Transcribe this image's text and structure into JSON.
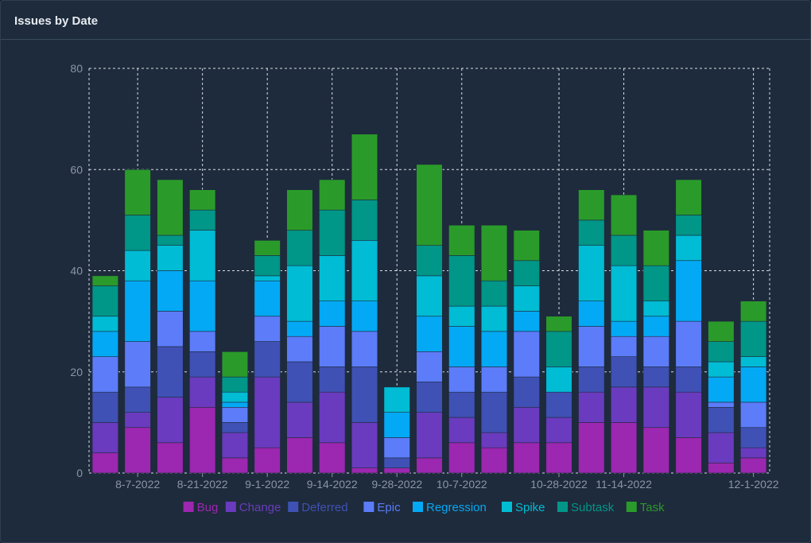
{
  "panel": {
    "title": "Issues by Date"
  },
  "chart_data": {
    "type": "bar",
    "stacked": true,
    "title": "Issues by Date",
    "xlabel": "",
    "ylabel": "",
    "ylim": [
      0,
      80
    ],
    "yticks": [
      0,
      20,
      40,
      60,
      80
    ],
    "grid": true,
    "legend_position": "bottom",
    "x_tick_labels": [
      {
        "index": 1,
        "label": "8-7-2022"
      },
      {
        "index": 3,
        "label": "8-21-2022"
      },
      {
        "index": 5,
        "label": "9-1-2022"
      },
      {
        "index": 7,
        "label": "9-14-2022"
      },
      {
        "index": 9,
        "label": "9-28-2022"
      },
      {
        "index": 11,
        "label": "10-7-2022"
      },
      {
        "index": 14,
        "label": "10-28-2022"
      },
      {
        "index": 16,
        "label": "11-14-2022"
      },
      {
        "index": 20,
        "label": "12-1-2022"
      }
    ],
    "n_bars": 21,
    "series": [
      {
        "name": "Bug",
        "color": "#9c27b0",
        "values": [
          4,
          9,
          6,
          13,
          3,
          5,
          7,
          6,
          1,
          1,
          3,
          6,
          5,
          6,
          6,
          10,
          10,
          9,
          7,
          2,
          3
        ]
      },
      {
        "name": "Change",
        "color": "#6a3bbf",
        "values": [
          6,
          3,
          9,
          6,
          5,
          14,
          7,
          10,
          9,
          0,
          9,
          5,
          3,
          7,
          5,
          6,
          7,
          8,
          9,
          6,
          2
        ]
      },
      {
        "name": "Deferred",
        "color": "#3f51b5",
        "values": [
          6,
          5,
          10,
          5,
          2,
          7,
          8,
          5,
          11,
          2,
          6,
          5,
          8,
          6,
          5,
          5,
          6,
          4,
          5,
          5,
          4
        ]
      },
      {
        "name": "Epic",
        "color": "#5c7cfa",
        "values": [
          7,
          9,
          7,
          4,
          3,
          5,
          5,
          8,
          7,
          4,
          6,
          5,
          5,
          9,
          0,
          8,
          4,
          6,
          9,
          1,
          5
        ]
      },
      {
        "name": "Regression",
        "color": "#03a9f4",
        "values": [
          5,
          12,
          8,
          10,
          1,
          7,
          3,
          5,
          6,
          5,
          7,
          8,
          7,
          4,
          0,
          5,
          3,
          4,
          12,
          5,
          7
        ]
      },
      {
        "name": "Spike",
        "color": "#00bcd4",
        "values": [
          3,
          6,
          5,
          10,
          2,
          1,
          11,
          9,
          12,
          5,
          8,
          4,
          5,
          5,
          5,
          11,
          11,
          3,
          5,
          3,
          2
        ]
      },
      {
        "name": "Subtask",
        "color": "#009688",
        "values": [
          6,
          7,
          2,
          4,
          3,
          4,
          7,
          9,
          8,
          0,
          6,
          10,
          5,
          5,
          7,
          5,
          6,
          7,
          4,
          4,
          7
        ]
      },
      {
        "name": "Task",
        "color": "#2a9b2a",
        "values": [
          2,
          9,
          11,
          4,
          5,
          3,
          8,
          6,
          13,
          0,
          16,
          6,
          11,
          6,
          3,
          6,
          8,
          7,
          7,
          4,
          4
        ]
      }
    ]
  }
}
